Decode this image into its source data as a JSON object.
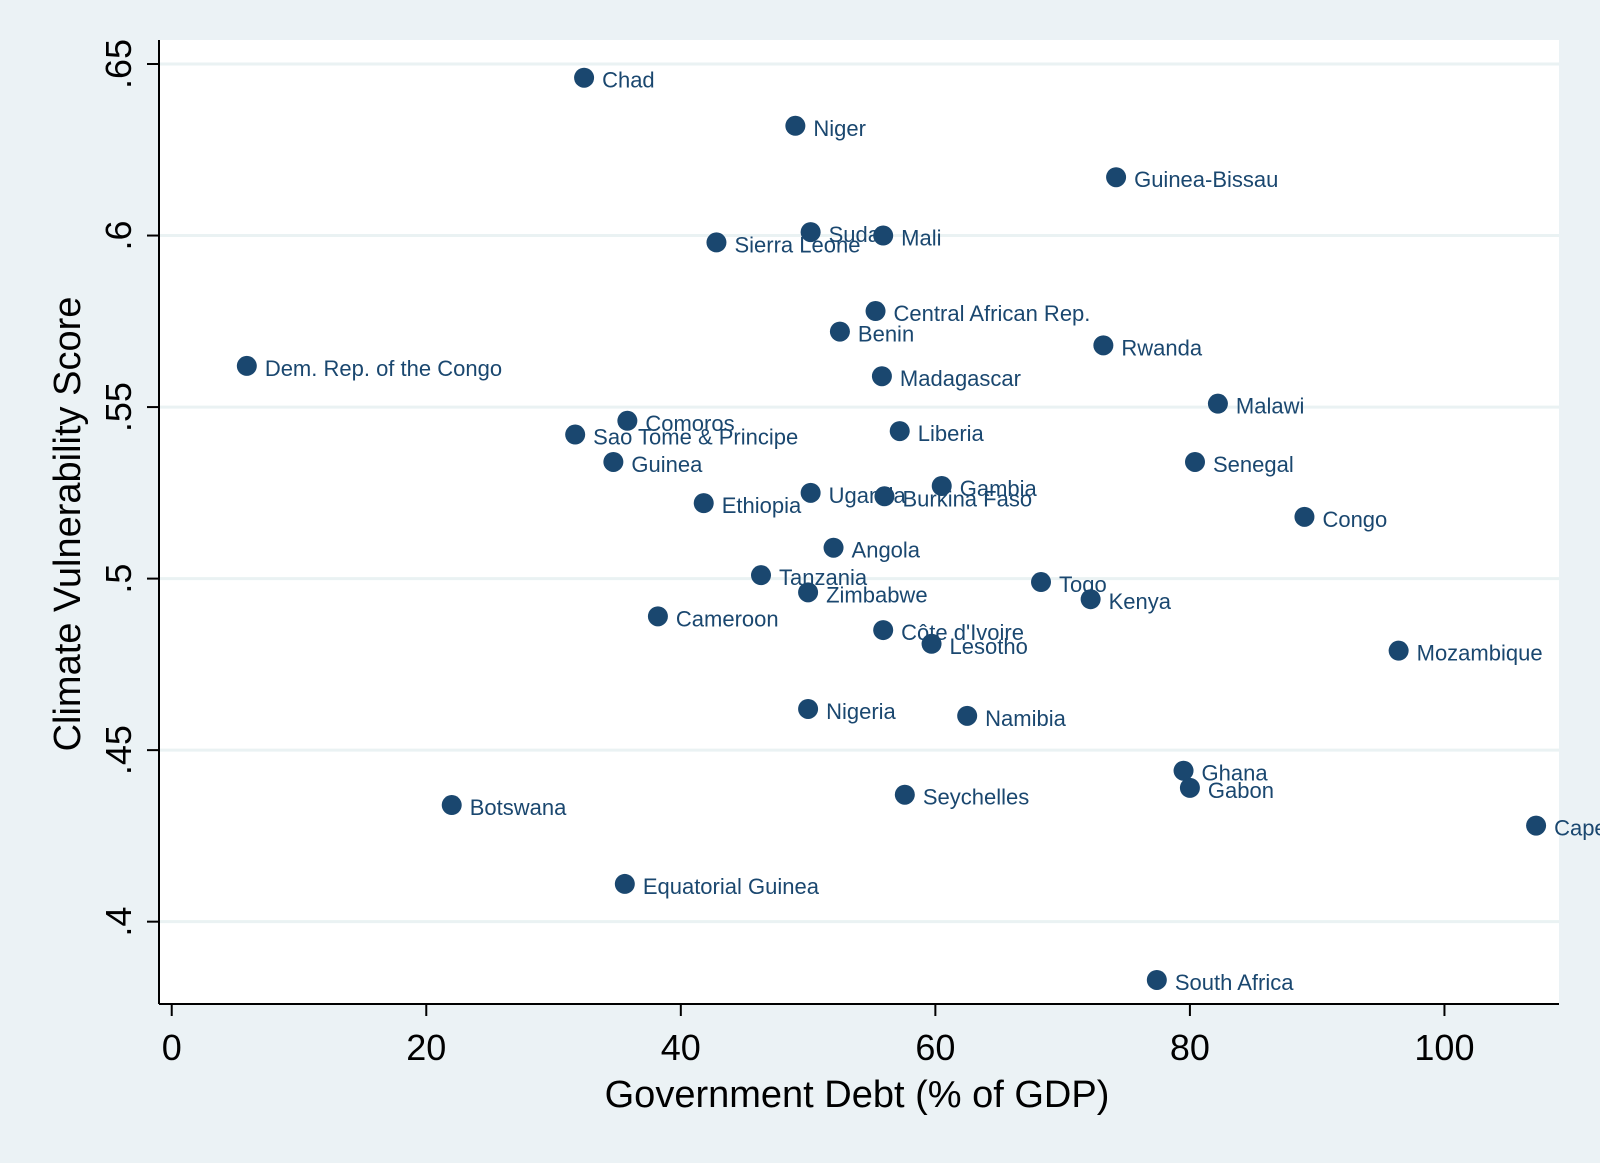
{
  "chart_data": {
    "type": "scatter",
    "title": "",
    "xlabel": "Government  Debt (% of GDP)",
    "ylabel": "Climate Vulnerability Score",
    "xlim": [
      -1,
      109
    ],
    "ylim": [
      0.376,
      0.657
    ],
    "xticks": [
      0,
      20,
      40,
      60,
      80,
      100
    ],
    "xtick_labels": [
      "0",
      "20",
      "40",
      "60",
      "80",
      "100"
    ],
    "yticks": [
      0.4,
      0.45,
      0.5,
      0.55,
      0.6,
      0.65
    ],
    "ytick_labels": [
      ".4",
      ".45",
      ".5",
      ".55",
      ".6",
      ".65"
    ],
    "grid": "horizontal",
    "marker_color": "#1a476f",
    "label_color": "#1a476f",
    "grid_color": "#eaf2f3",
    "plot_background": "#ffffff",
    "page_background": "#ebf2f5",
    "points": [
      {
        "label": "Chad",
        "x": 32.4,
        "y": 0.646
      },
      {
        "label": "Niger",
        "x": 49.0,
        "y": 0.632
      },
      {
        "label": "Guinea-Bissau",
        "x": 74.2,
        "y": 0.617
      },
      {
        "label": "Sudan",
        "x": 50.2,
        "y": 0.601
      },
      {
        "label": "Mali",
        "x": 55.9,
        "y": 0.6
      },
      {
        "label": "Sierra Leone",
        "x": 42.8,
        "y": 0.598
      },
      {
        "label": "Central African Rep.",
        "x": 55.3,
        "y": 0.578
      },
      {
        "label": "Benin",
        "x": 52.5,
        "y": 0.572
      },
      {
        "label": "Rwanda",
        "x": 73.2,
        "y": 0.568
      },
      {
        "label": "Dem. Rep. of the Congo",
        "x": 5.9,
        "y": 0.562
      },
      {
        "label": "Madagascar",
        "x": 55.8,
        "y": 0.559
      },
      {
        "label": "Malawi",
        "x": 82.2,
        "y": 0.551
      },
      {
        "label": "Comoros",
        "x": 35.8,
        "y": 0.546
      },
      {
        "label": "Liberia",
        "x": 57.2,
        "y": 0.543
      },
      {
        "label": "Sao Tome & Principe",
        "x": 31.7,
        "y": 0.542
      },
      {
        "label": "Guinea",
        "x": 34.7,
        "y": 0.534
      },
      {
        "label": "Senegal",
        "x": 80.4,
        "y": 0.534
      },
      {
        "label": "Gambia",
        "x": 60.5,
        "y": 0.527
      },
      {
        "label": "Uganda",
        "x": 50.2,
        "y": 0.525
      },
      {
        "label": "Burkina Faso",
        "x": 56.0,
        "y": 0.524
      },
      {
        "label": "Ethiopia",
        "x": 41.8,
        "y": 0.522
      },
      {
        "label": "Congo",
        "x": 89.0,
        "y": 0.518
      },
      {
        "label": "Angola",
        "x": 52.0,
        "y": 0.509
      },
      {
        "label": "Tanzania",
        "x": 46.3,
        "y": 0.501
      },
      {
        "label": "Togo",
        "x": 68.3,
        "y": 0.499
      },
      {
        "label": "Zimbabwe",
        "x": 50.0,
        "y": 0.496
      },
      {
        "label": "Kenya",
        "x": 72.2,
        "y": 0.494
      },
      {
        "label": "Cameroon",
        "x": 38.2,
        "y": 0.489
      },
      {
        "label": "Côte d'Ivoire",
        "x": 55.9,
        "y": 0.485
      },
      {
        "label": "Lesotho",
        "x": 59.7,
        "y": 0.481
      },
      {
        "label": "Mozambique",
        "x": 96.4,
        "y": 0.479
      },
      {
        "label": "Nigeria",
        "x": 50.0,
        "y": 0.462
      },
      {
        "label": "Namibia",
        "x": 62.5,
        "y": 0.46
      },
      {
        "label": "Ghana",
        "x": 79.5,
        "y": 0.444
      },
      {
        "label": "Gabon",
        "x": 80.0,
        "y": 0.439
      },
      {
        "label": "Seychelles",
        "x": 57.6,
        "y": 0.437
      },
      {
        "label": "Botswana",
        "x": 22.0,
        "y": 0.434
      },
      {
        "label": "Cape Verde",
        "x": 107.2,
        "y": 0.428
      },
      {
        "label": "Equatorial Guinea",
        "x": 35.6,
        "y": 0.411
      },
      {
        "label": "South Africa",
        "x": 77.4,
        "y": 0.383
      }
    ]
  }
}
